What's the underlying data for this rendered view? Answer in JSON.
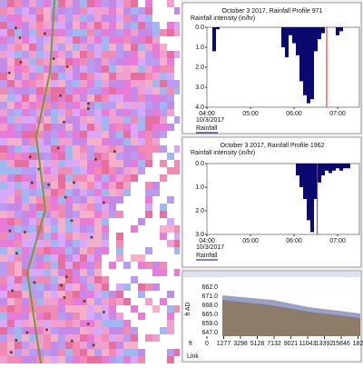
{
  "chart_data": [
    {
      "type": "bar",
      "title": "October 3 2017, Rainfall Profile 971",
      "y_label": "Rainfall intensity (in/hr)",
      "x": [
        "04:10",
        "04:15",
        "05:45",
        "05:50",
        "05:55",
        "06:00",
        "06:05",
        "06:10",
        "06:15",
        "06:20",
        "06:25",
        "06:30",
        "06:35",
        "06:40",
        "07:00",
        "07:05"
      ],
      "series": [
        {
          "name": "Rainfall",
          "color": "#0a0a6e",
          "values": [
            1.2,
            0.1,
            1.0,
            1.5,
            0.4,
            0.8,
            1.4,
            2.7,
            3.4,
            3.8,
            3.6,
            1.2,
            0.6,
            0.3,
            0.4,
            0.2
          ]
        }
      ],
      "xlim": [
        "04:00",
        "07:30"
      ],
      "xticks": [
        "04:00",
        "05:00",
        "06:00",
        "07:00"
      ],
      "date": "10/3/2017",
      "current_time": "06:45",
      "ylim": [
        0,
        4
      ],
      "y_inverted": true,
      "yticks": [
        {
          "value": 0,
          "label": "0.0"
        },
        {
          "value": 1,
          "label": "1.0"
        },
        {
          "value": 2,
          "label": "2.0"
        },
        {
          "value": 3,
          "label": "3.0"
        },
        {
          "value": 4,
          "label": "4.0"
        }
      ]
    },
    {
      "type": "bar",
      "title": "October 3 2017, Rainfall Profile 1962",
      "y_label": "Rainfall intensity (in/hr)",
      "x": [
        "06:05",
        "06:10",
        "06:15",
        "06:20",
        "06:25",
        "06:30",
        "06:35",
        "06:40",
        "06:45",
        "06:50",
        "06:55",
        "07:00",
        "07:05",
        "07:10",
        "07:15"
      ],
      "series": [
        {
          "name": "Rainfall",
          "color": "#0a0a6e",
          "values": [
            0.5,
            1.0,
            1.5,
            2.4,
            2.9,
            1.5,
            0.8,
            0.5,
            0.3,
            0.4,
            0.3,
            0.2,
            0.3,
            0.2,
            0.2
          ]
        }
      ],
      "xlim": [
        "04:00",
        "07:30"
      ],
      "xticks": [
        "04:00",
        "05:00",
        "06:00",
        "07:00"
      ],
      "date": "10/3/2017",
      "current_time": "06:32",
      "ylim": [
        0,
        3
      ],
      "y_inverted": true,
      "yticks": [
        {
          "value": 0,
          "label": "0.0"
        },
        {
          "value": 1,
          "label": "1.0"
        },
        {
          "value": 2,
          "label": "2.0"
        },
        {
          "value": 3,
          "label": "3.0"
        }
      ]
    }
  ],
  "profile": {
    "axis_label": "ft AD",
    "y_labels": [
      "662.0",
      "671.0",
      "668.0",
      "665.0",
      "659.0",
      "647.0"
    ],
    "unit": "ft",
    "x_labels": [
      "0",
      "1277",
      "3298",
      "5128",
      "7132",
      "9021",
      "11043",
      "13392",
      "15846",
      "182"
    ],
    "row_label": "Link"
  }
}
